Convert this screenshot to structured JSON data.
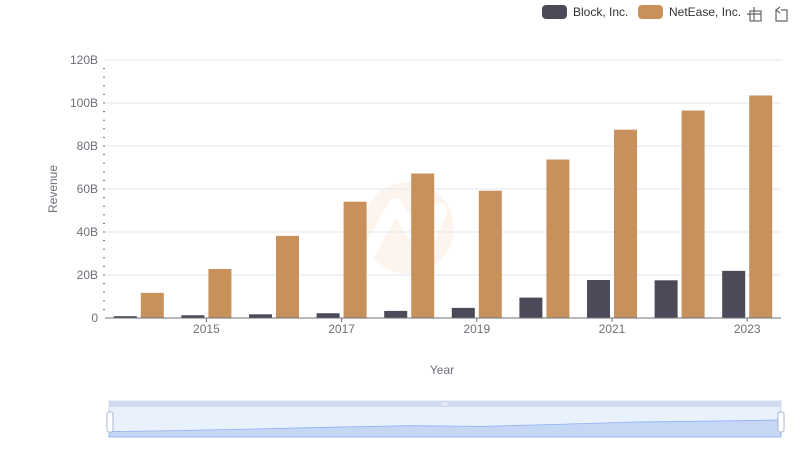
{
  "chart_data": {
    "type": "bar",
    "categories": [
      "2014",
      "2015",
      "2016",
      "2017",
      "2018",
      "2019",
      "2020",
      "2021",
      "2022",
      "2023"
    ],
    "x_tick_labels": [
      "2015",
      "2017",
      "2019",
      "2021",
      "2023"
    ],
    "xlabel": "Year",
    "ylabel": "Revenue",
    "ylim": [
      0,
      120000000000
    ],
    "y_ticks": [
      {
        "value": 0,
        "label": "0"
      },
      {
        "value": 20000000000,
        "label": "20B"
      },
      {
        "value": 40000000000,
        "label": "40B"
      },
      {
        "value": 60000000000,
        "label": "60B"
      },
      {
        "value": 80000000000,
        "label": "80B"
      },
      {
        "value": 100000000000,
        "label": "100B"
      },
      {
        "value": 120000000000,
        "label": "120B"
      }
    ],
    "grid": true,
    "legend_position": "top-right",
    "series": [
      {
        "name": "Block, Inc.",
        "color": "#4a4a58",
        "values": [
          850000000,
          1270000000,
          1710000000,
          2210000000,
          3300000000,
          4710000000,
          9500000000,
          17660000000,
          17530000000,
          21920000000
        ]
      },
      {
        "name": "NetEase, Inc.",
        "color": "#c8915c",
        "values": [
          11700000000,
          22800000000,
          38200000000,
          54100000000,
          67200000000,
          59200000000,
          73700000000,
          87600000000,
          96500000000,
          103500000000
        ]
      }
    ]
  },
  "toolbox": {
    "zoom_icon": "zoom-select-icon",
    "restore_icon": "restore-icon"
  },
  "data_zoom": {
    "start": 0,
    "end": 100
  }
}
